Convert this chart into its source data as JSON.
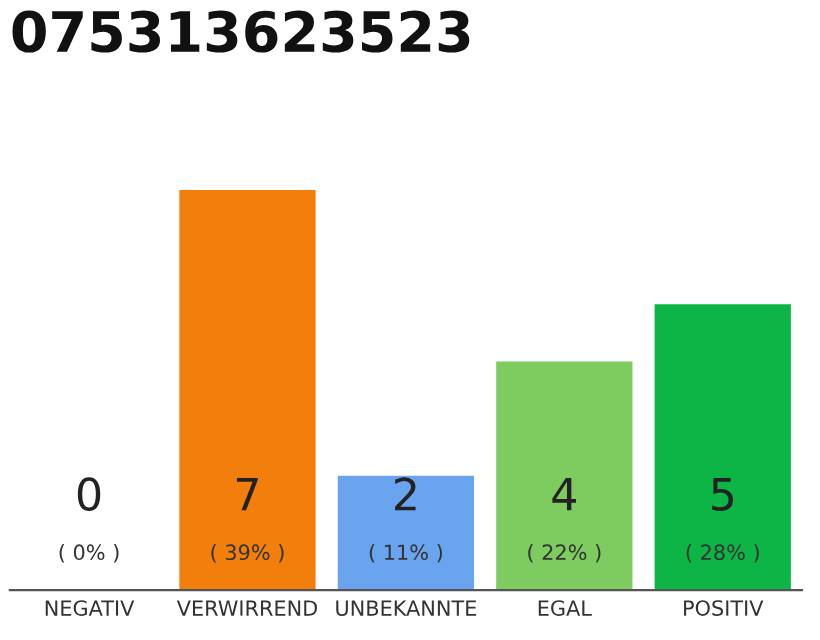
{
  "chart_data": {
    "type": "bar",
    "title": "075313623523",
    "categories": [
      "NEGATIV",
      "VERWIRREND",
      "UNBEKANNTE",
      "EGAL",
      "POSITIV"
    ],
    "values": [
      0,
      7,
      2,
      4,
      5
    ],
    "colors": [
      "#9e9e9e",
      "#f27f0c",
      "#6aa3ee",
      "#7ecb5f",
      "#0db547"
    ],
    "ylim": [
      0,
      7
    ],
    "data_labels": true,
    "annotations": [
      {
        "text": "( 0% )",
        "x": "NEGATIV",
        "y": 0
      },
      {
        "text": "( 39% )",
        "x": "VERWIRREND",
        "y": 0
      },
      {
        "text": "( 11% )",
        "x": "UNBEKANNTE",
        "y": 0
      },
      {
        "text": "( 22% )",
        "x": "EGAL",
        "y": 0
      },
      {
        "text": "( 28% )",
        "x": "POSITIV",
        "y": 0
      }
    ],
    "tick_labels": "x",
    "grid": false,
    "legend": false
  }
}
